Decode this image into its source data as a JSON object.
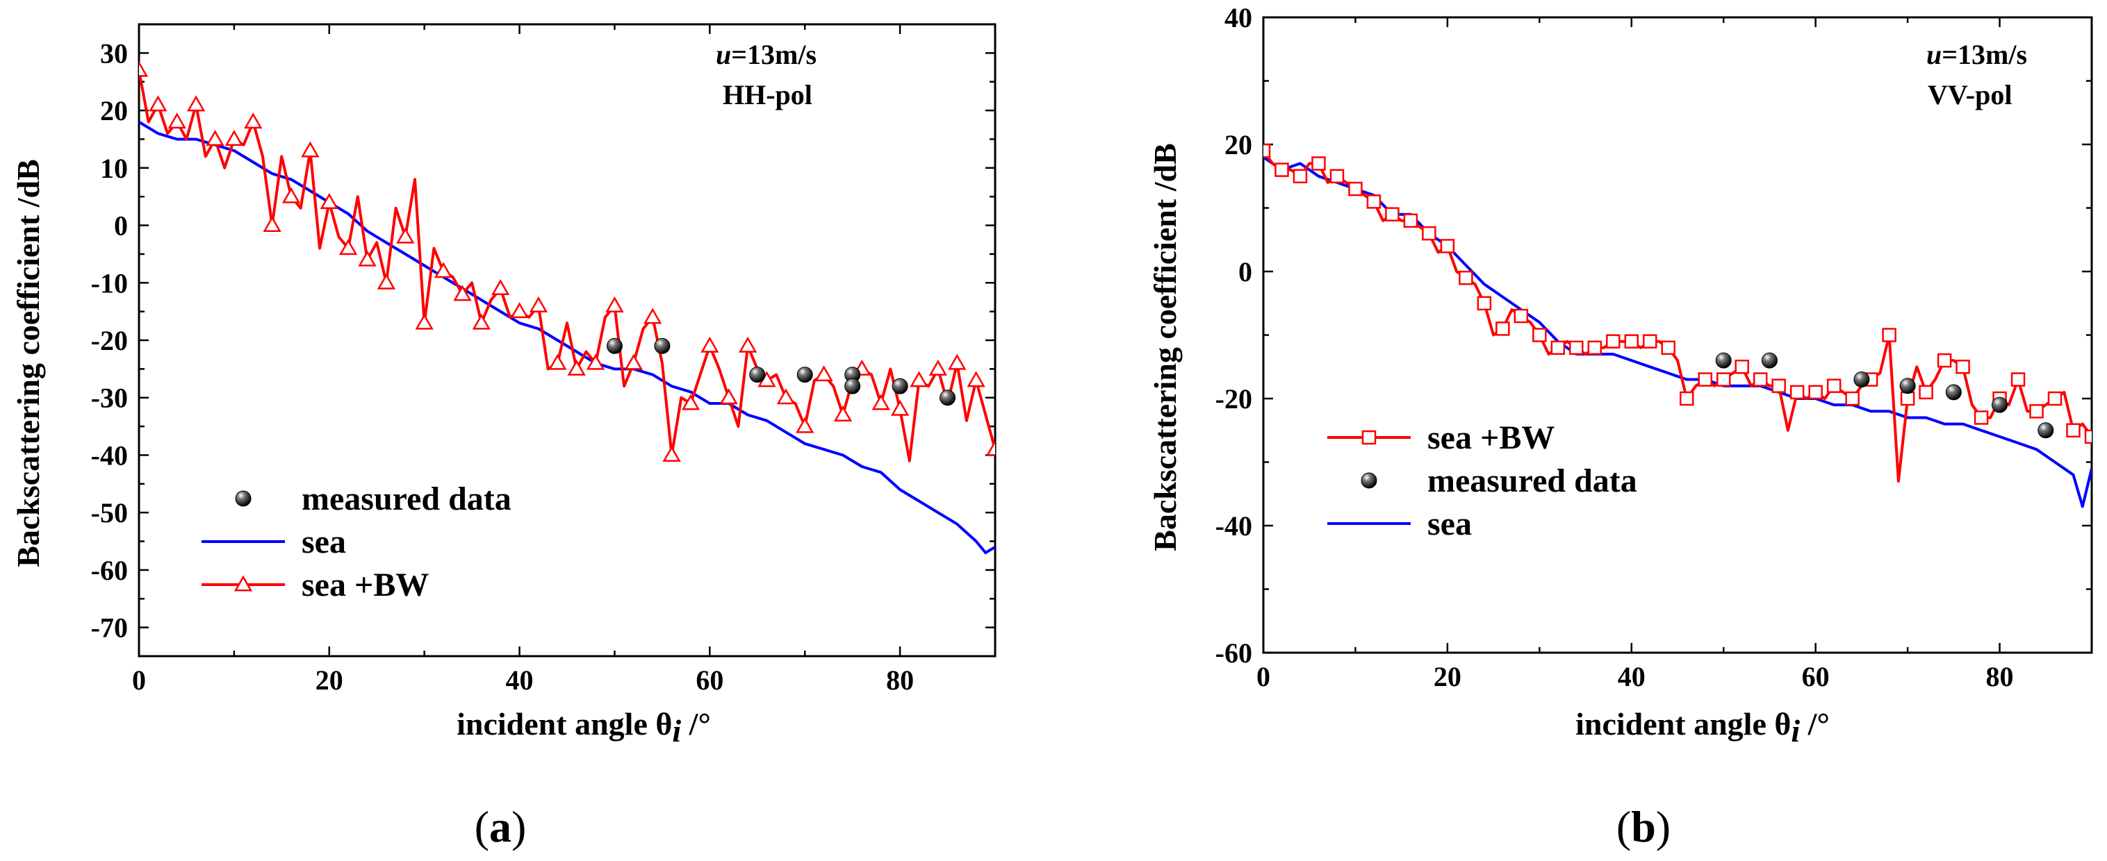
{
  "chart_data": [
    {
      "type": "line",
      "panel_label": "a",
      "caption_open": "(",
      "caption_close": ")",
      "xlabel": "incident angle θ",
      "xlabel_sub": "i",
      "xlabel_unit": " /°",
      "ylabel": "Backscattering coefficient /dB",
      "xlim": [
        0,
        90
      ],
      "ylim": [
        -75,
        35
      ],
      "xticks": [
        0,
        20,
        40,
        60,
        80
      ],
      "yticks": [
        30,
        20,
        10,
        0,
        -10,
        -20,
        -30,
        -40,
        -50,
        -60,
        -70
      ],
      "annotation": {
        "speed_var": "u",
        "speed_value": "=13m/s",
        "pol": "HH-pol"
      },
      "legend": [
        "measured data",
        "sea",
        "sea +BW"
      ],
      "legend_position": "center-left",
      "series": [
        {
          "name": "sea",
          "color": "#0000ff",
          "marker": "none",
          "x": [
            0,
            2,
            4,
            6,
            8,
            10,
            12,
            14,
            16,
            18,
            20,
            22,
            24,
            26,
            28,
            30,
            32,
            34,
            36,
            38,
            40,
            42,
            44,
            46,
            48,
            50,
            52,
            54,
            56,
            58,
            60,
            62,
            64,
            66,
            68,
            70,
            72,
            74,
            76,
            78,
            80,
            82,
            84,
            86,
            88,
            89,
            90
          ],
          "y": [
            18,
            16,
            15,
            15,
            14,
            13,
            11,
            9,
            8,
            6,
            4,
            2,
            -1,
            -3,
            -5,
            -7,
            -9,
            -11,
            -13,
            -15,
            -17,
            -18,
            -20,
            -22,
            -24,
            -25,
            -25,
            -26,
            -28,
            -29,
            -31,
            -31,
            -33,
            -34,
            -36,
            -38,
            -39,
            -40,
            -42,
            -43,
            -46,
            -48,
            -50,
            -52,
            -55,
            -57,
            -56
          ]
        },
        {
          "name": "sea +BW",
          "color": "#ff0000",
          "marker": "triangle",
          "x": [
            0,
            1,
            2,
            3,
            4,
            5,
            6,
            7,
            8,
            9,
            10,
            11,
            12,
            13,
            14,
            15,
            16,
            17,
            18,
            19,
            20,
            21,
            22,
            23,
            24,
            25,
            26,
            27,
            28,
            29,
            30,
            31,
            32,
            33,
            34,
            35,
            36,
            37,
            38,
            39,
            40,
            41,
            42,
            43,
            44,
            45,
            46,
            47,
            48,
            49,
            50,
            51,
            52,
            53,
            54,
            55,
            56,
            57,
            58,
            59,
            60,
            61,
            62,
            63,
            64,
            65,
            66,
            67,
            68,
            69,
            70,
            71,
            72,
            73,
            74,
            75,
            76,
            77,
            78,
            79,
            80,
            81,
            82,
            83,
            84,
            85,
            86,
            87,
            88,
            89,
            90
          ],
          "y": [
            27,
            18,
            21,
            16,
            18,
            15,
            21,
            12,
            15,
            10,
            15,
            14,
            18,
            12,
            0,
            12,
            5,
            3,
            13,
            -4,
            4,
            -2,
            -4,
            5,
            -6,
            -3,
            -10,
            3,
            -2,
            8,
            -17,
            -4,
            -8,
            -9,
            -12,
            -10,
            -17,
            -13,
            -11,
            -16,
            -15,
            -16,
            -14,
            -25,
            -24,
            -17,
            -25,
            -22,
            -24,
            -16,
            -14,
            -28,
            -24,
            -18,
            -16,
            -24,
            -40,
            -30,
            -31,
            -26,
            -21,
            -25,
            -30,
            -35,
            -21,
            -25,
            -27,
            -26,
            -30,
            -31,
            -35,
            -27,
            -26,
            -28,
            -33,
            -27,
            -25,
            -26,
            -31,
            -25,
            -32,
            -41,
            -27,
            -28,
            -25,
            -31,
            -24,
            -34,
            -27,
            -33,
            -39
          ]
        },
        {
          "name": "measured data",
          "color": "#222222",
          "marker": "sphere",
          "x": [
            50,
            55,
            65,
            70,
            75,
            75,
            80,
            85
          ],
          "y": [
            -21,
            -21,
            -26,
            -26,
            -26,
            -28,
            -28,
            -30
          ]
        }
      ]
    },
    {
      "type": "line",
      "panel_label": "b",
      "caption_open": "(",
      "caption_close": ")",
      "xlabel": "incident angle θ",
      "xlabel_sub": "i",
      "xlabel_unit": " /°",
      "ylabel": "Backscattering coefficient /dB",
      "xlim": [
        0,
        90
      ],
      "ylim": [
        -60,
        40
      ],
      "xticks": [
        0,
        20,
        40,
        60,
        80
      ],
      "yticks": [
        40,
        20,
        0,
        -20,
        -40,
        -60
      ],
      "annotation": {
        "speed_var": "u",
        "speed_value": "=13m/s",
        "pol": "VV-pol"
      },
      "legend": [
        "sea +BW",
        "measured data",
        "sea"
      ],
      "legend_position": "center-left",
      "series": [
        {
          "name": "sea",
          "color": "#0000ff",
          "marker": "none",
          "x": [
            0,
            2,
            4,
            6,
            8,
            10,
            12,
            14,
            16,
            18,
            20,
            22,
            24,
            26,
            28,
            30,
            32,
            34,
            36,
            38,
            40,
            42,
            44,
            46,
            48,
            50,
            52,
            54,
            56,
            58,
            60,
            62,
            64,
            66,
            68,
            70,
            72,
            74,
            76,
            78,
            80,
            82,
            84,
            86,
            88,
            89,
            90
          ],
          "y": [
            18,
            16,
            17,
            15,
            14,
            13,
            12,
            9,
            9,
            6,
            4,
            1,
            -2,
            -4,
            -6,
            -8,
            -11,
            -13,
            -13,
            -13,
            -14,
            -15,
            -16,
            -17,
            -17,
            -18,
            -18,
            -18,
            -19,
            -20,
            -20,
            -21,
            -21,
            -22,
            -22,
            -23,
            -23,
            -24,
            -24,
            -25,
            -26,
            -27,
            -28,
            -30,
            -32,
            -37,
            -31
          ]
        },
        {
          "name": "sea +BW",
          "color": "#ff0000",
          "marker": "square",
          "x": [
            0,
            1,
            2,
            3,
            4,
            5,
            6,
            7,
            8,
            9,
            10,
            11,
            12,
            13,
            14,
            15,
            16,
            17,
            18,
            19,
            20,
            21,
            22,
            23,
            24,
            25,
            26,
            27,
            28,
            29,
            30,
            31,
            32,
            33,
            34,
            35,
            36,
            37,
            38,
            39,
            40,
            41,
            42,
            43,
            44,
            45,
            46,
            47,
            48,
            49,
            50,
            51,
            52,
            53,
            54,
            55,
            56,
            57,
            58,
            59,
            60,
            61,
            62,
            63,
            64,
            65,
            66,
            67,
            68,
            69,
            70,
            71,
            72,
            73,
            74,
            75,
            76,
            77,
            78,
            79,
            80,
            81,
            82,
            83,
            84,
            85,
            86,
            87,
            88,
            89,
            90
          ],
          "y": [
            19,
            17,
            16,
            16,
            15,
            17,
            17,
            14,
            15,
            14,
            13,
            12,
            11,
            8,
            9,
            8,
            8,
            7,
            6,
            3,
            4,
            0,
            -1,
            -2,
            -5,
            -10,
            -9,
            -6,
            -7,
            -8,
            -10,
            -13,
            -12,
            -11,
            -12,
            -13,
            -12,
            -12,
            -11,
            -11,
            -11,
            -12,
            -11,
            -11,
            -12,
            -14,
            -20,
            -18,
            -17,
            -18,
            -17,
            -16,
            -15,
            -18,
            -17,
            -18,
            -18,
            -25,
            -19,
            -20,
            -19,
            -20,
            -18,
            -19,
            -20,
            -18,
            -17,
            -16,
            -10,
            -33,
            -20,
            -15,
            -19,
            -17,
            -14,
            -14,
            -15,
            -21,
            -23,
            -23,
            -20,
            -21,
            -17,
            -22,
            -22,
            -21,
            -20,
            -19,
            -25,
            -24,
            -26
          ]
        },
        {
          "name": "measured data",
          "color": "#222222",
          "marker": "sphere",
          "x": [
            50,
            55,
            65,
            70,
            75,
            80,
            85
          ],
          "y": [
            -14,
            -14,
            -17,
            -18,
            -19,
            -21,
            -25
          ]
        }
      ]
    }
  ]
}
